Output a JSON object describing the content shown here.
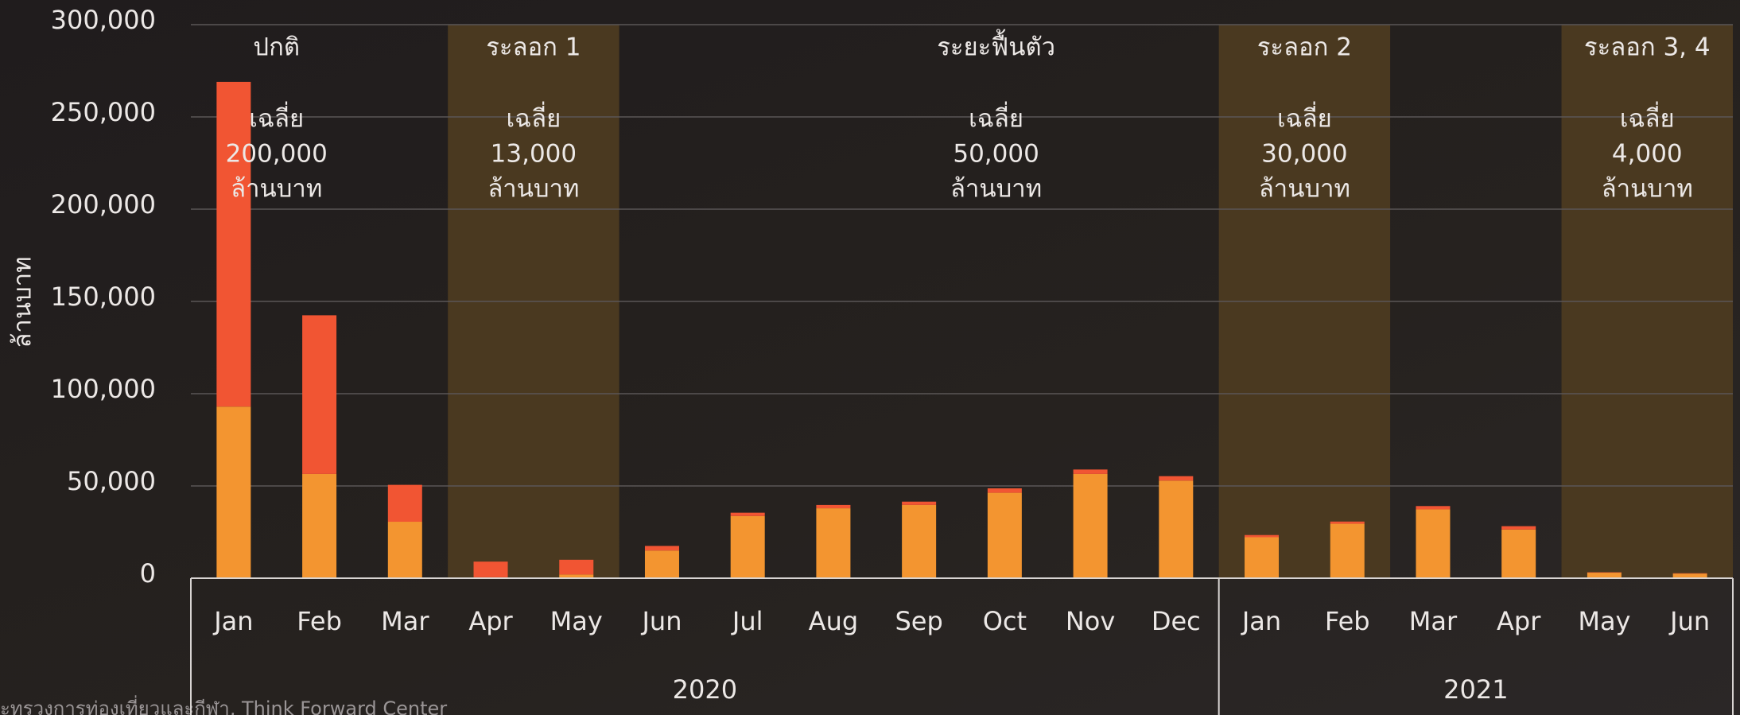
{
  "chart_data": {
    "type": "stacked_bar",
    "y_label": "ล้านบาท",
    "categories": [
      "Jan",
      "Feb",
      "Mar",
      "Apr",
      "May",
      "Jun",
      "Jul",
      "Aug",
      "Sep",
      "Oct",
      "Nov",
      "Dec",
      "Jan",
      "Feb",
      "Mar",
      "Apr",
      "May",
      "Jun"
    ],
    "year_labels": [
      "2020",
      "2021"
    ],
    "series": [
      {
        "color": "#f39530",
        "values": [
          93000,
          56500,
          30600,
          500,
          2000,
          15000,
          33700,
          37900,
          39700,
          46300,
          56500,
          52900,
          22200,
          29500,
          37300,
          26400,
          3000,
          2500
        ]
      },
      {
        "color": "#f15533",
        "values": [
          176000,
          86000,
          20000,
          8500,
          8000,
          2500,
          1800,
          1800,
          1800,
          2400,
          2400,
          2400,
          1200,
          1200,
          1800,
          1800,
          200,
          200
        ]
      }
    ],
    "ylim": [
      0,
      300000
    ],
    "yticks": [
      0,
      {
        "value": 50000,
        "label": "50,000"
      },
      {
        "value": 100000,
        "label": "100,000"
      },
      {
        "value": 150000,
        "label": "150,000"
      },
      {
        "value": 200000,
        "label": "200,000"
      },
      {
        "value": 250000,
        "label": "250,000"
      },
      {
        "value": 300000,
        "label": "300,000"
      }
    ],
    "grid": true,
    "periods": [
      {
        "name": "ปกติ",
        "lines": [
          "เฉลี่ย",
          "200,000",
          "ล้านบาท"
        ]
      },
      {
        "name": "ระลอก 1",
        "lines": [
          "เฉลี่ย",
          "13,000",
          "ล้านบาท"
        ]
      },
      {
        "name": "ระยะฟื้นตัว",
        "lines": [
          "เฉลี่ย",
          "50,000",
          "ล้านบาท"
        ]
      },
      {
        "name": "ระลอก 2",
        "lines": [
          "เฉลี่ย",
          "30,000",
          "ล้านบาท"
        ]
      },
      {
        "name": "ระลอก 3, 4",
        "lines": [
          "เฉลี่ย",
          "4,000",
          "ล้านบาท"
        ]
      }
    ],
    "source": "ะทรวงการท่องเที่ยวและกีฬา, Think Forward Center"
  }
}
